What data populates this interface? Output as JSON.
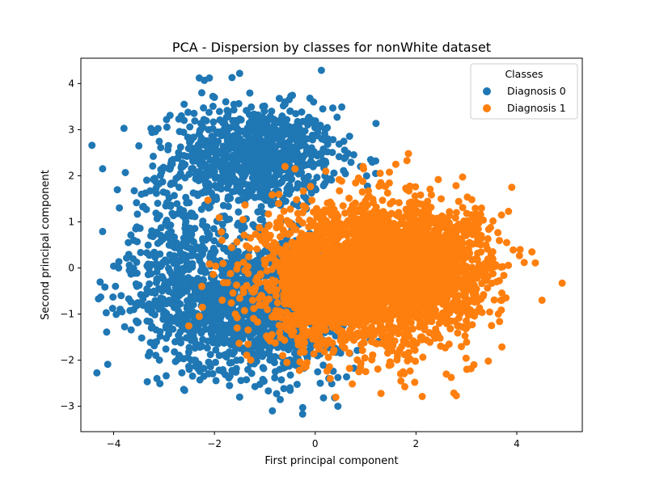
{
  "chart_data": {
    "type": "scatter",
    "title": "PCA - Dispersion by classes for nonWhite dataset",
    "xlabel": "First principal component",
    "ylabel": "Second principal component",
    "xlim": [
      -4.65,
      5.3
    ],
    "ylim": [
      -3.55,
      4.55
    ],
    "xticks": [
      -4,
      -2,
      0,
      2,
      4
    ],
    "yticks": [
      -3,
      -2,
      -1,
      0,
      1,
      2,
      3,
      4
    ],
    "grid": false,
    "legend": {
      "title": "Classes",
      "placement": "top-right"
    },
    "series": [
      {
        "name": "Diagnosis 0",
        "color": "#1f77b4",
        "clusters": [
          {
            "cx": -1.2,
            "cy": 2.4,
            "sx": 0.8,
            "sy": 0.55,
            "n": 900
          },
          {
            "cx": -1.6,
            "cy": -0.8,
            "sx": 0.85,
            "sy": 0.7,
            "n": 1000
          },
          {
            "cx": -0.3,
            "cy": -1.0,
            "sx": 0.6,
            "sy": 0.7,
            "n": 350
          },
          {
            "cx": -2.7,
            "cy": 0.4,
            "sx": 0.7,
            "sy": 1.1,
            "n": 300
          }
        ],
        "points": [
          [
            -4.3,
            -0.67
          ],
          [
            -4.0,
            0.04
          ],
          [
            -3.9,
            0.0
          ],
          [
            -3.85,
            -0.6
          ],
          [
            -3.7,
            -0.67
          ],
          [
            -3.6,
            -0.9
          ],
          [
            -3.55,
            -1.15
          ],
          [
            -3.6,
            0.6
          ],
          [
            -3.5,
            2.65
          ],
          [
            -3.45,
            1.6
          ],
          [
            -3.35,
            1.27
          ],
          [
            -3.25,
            -1.3
          ],
          [
            -3.15,
            -1.6
          ],
          [
            -2.95,
            3.22
          ],
          [
            -2.6,
            3.2
          ],
          [
            -2.3,
            4.12
          ],
          [
            -2.2,
            4.07
          ],
          [
            -2.1,
            4.12
          ],
          [
            -1.65,
            4.13
          ],
          [
            -1.5,
            4.22
          ],
          [
            -2.6,
            3.55
          ],
          [
            -2.25,
            3.8
          ],
          [
            -2.0,
            3.7
          ],
          [
            -0.6,
            3.55
          ],
          [
            -0.5,
            3.4
          ],
          [
            0.15,
            3.45
          ],
          [
            0.2,
            3.0
          ],
          [
            -0.85,
            -3.1
          ],
          [
            -0.25,
            -3.17
          ],
          [
            0.45,
            -3.0
          ],
          [
            -1.5,
            -2.8
          ],
          [
            -1.7,
            -2.55
          ],
          [
            -0.5,
            -2.6
          ],
          [
            0.1,
            -2.5
          ],
          [
            0.6,
            2.4
          ],
          [
            1.1,
            2.35
          ],
          [
            1.2,
            2.05
          ],
          [
            0.9,
            2.2
          ],
          [
            -2.4,
            -2.0
          ],
          [
            -2.5,
            -2.2
          ]
        ]
      },
      {
        "name": "Diagnosis 1",
        "color": "#ff7f0e",
        "clusters": [
          {
            "cx": 1.1,
            "cy": -0.15,
            "sx": 1.0,
            "sy": 0.75,
            "n": 2800
          },
          {
            "cx": 2.4,
            "cy": 0.1,
            "sx": 0.6,
            "sy": 0.6,
            "n": 500
          },
          {
            "cx": 0.1,
            "cy": -0.5,
            "sx": 0.45,
            "sy": 0.6,
            "n": 400
          }
        ],
        "points": [
          [
            4.9,
            -0.33
          ],
          [
            4.5,
            -0.7
          ],
          [
            4.3,
            0.35
          ],
          [
            3.9,
            1.75
          ],
          [
            3.8,
            0.55
          ],
          [
            3.6,
            -0.3
          ],
          [
            3.7,
            -0.7
          ],
          [
            3.5,
            -1.25
          ],
          [
            3.2,
            -0.95
          ],
          [
            2.8,
            -2.77
          ],
          [
            3.15,
            -2.1
          ],
          [
            2.6,
            -2.3
          ],
          [
            1.85,
            2.48
          ],
          [
            1.3,
            1.85
          ],
          [
            1.6,
            2.25
          ],
          [
            0.95,
            2.2
          ],
          [
            -1.0,
            0.8
          ],
          [
            -1.85,
            0.6
          ],
          [
            -2.25,
            -0.4
          ],
          [
            -2.3,
            -1.05
          ],
          [
            -1.55,
            -1.3
          ],
          [
            -0.6,
            2.2
          ],
          [
            -0.4,
            2.15
          ],
          [
            0.3,
            -2.4
          ],
          [
            1.7,
            -2.45
          ],
          [
            2.5,
            1.5
          ],
          [
            3.3,
            1.3
          ]
        ]
      }
    ]
  }
}
